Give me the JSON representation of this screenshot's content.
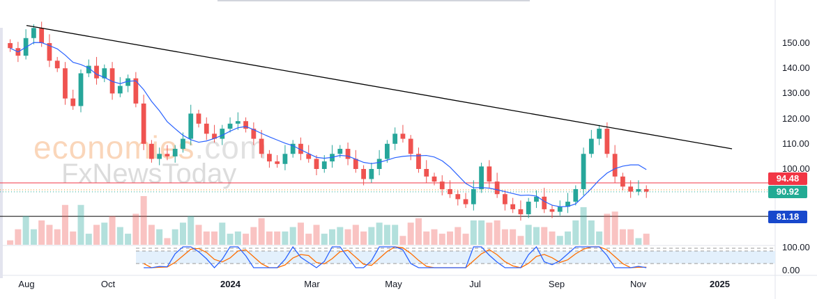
{
  "watermark": {
    "line1_a": "economies",
    "line1_b": ".com",
    "line2": "FxNewsToday"
  },
  "price_labels": {
    "resistance": "94.48",
    "last": "90.92",
    "support": "81.18"
  },
  "colors": {
    "up": "#26a69a",
    "down": "#ef5350",
    "ma": "#2962ff",
    "trend": "#000000",
    "resistance": "#f23645",
    "support_label": "#1848cc",
    "stoch_k": "#2962ff",
    "stoch_d": "#ff6d00"
  },
  "chart_data": {
    "type": "candlestick",
    "title": "",
    "y_ticks": [
      "150.00",
      "140.00",
      "130.00",
      "120.00",
      "110.00",
      "100.00"
    ],
    "y_tick_values": [
      150,
      140,
      130,
      120,
      110,
      100
    ],
    "ylim": [
      70,
      162
    ],
    "x_ticks": [
      "Aug",
      "Oct",
      "2024",
      "Mar",
      "May",
      "Jul",
      "Sep",
      "Nov",
      "2025"
    ],
    "x_tick_months": [
      1,
      3,
      6,
      8,
      10,
      12,
      14,
      16,
      18
    ],
    "x_start_month": 0.6,
    "x_end_month": 16.2,
    "closes": [
      148,
      145,
      152,
      156,
      150,
      143,
      140,
      128,
      125,
      138,
      141,
      136,
      140,
      130,
      133,
      136,
      126,
      110,
      104,
      106,
      105,
      108,
      112,
      122,
      118,
      114,
      112,
      116,
      118,
      119,
      116,
      112,
      106,
      103,
      102,
      106,
      110,
      106,
      104,
      100,
      103,
      106,
      108,
      104,
      100,
      96,
      100,
      104,
      110,
      114,
      112,
      106,
      100,
      97,
      95,
      92,
      90,
      88,
      86,
      92,
      101,
      95,
      90,
      86,
      84,
      82,
      87,
      89,
      84,
      83,
      85,
      87,
      92,
      106,
      112,
      116,
      106,
      97,
      93,
      91,
      92,
      91
    ],
    "trendline": {
      "start": {
        "month": 1.0,
        "value": 157
      },
      "end": {
        "month": 18.3,
        "value": 108
      }
    },
    "horizontal_levels": [
      {
        "value": 94.48,
        "label": "94.48"
      },
      {
        "value": 81.18,
        "label": "81.18"
      }
    ],
    "last_price": 90.92,
    "ma_period": 8,
    "stochastic": {
      "ticks": [
        "100.00",
        "0.00"
      ],
      "upper_band": 80,
      "lower_band": 20,
      "period": 5
    }
  }
}
